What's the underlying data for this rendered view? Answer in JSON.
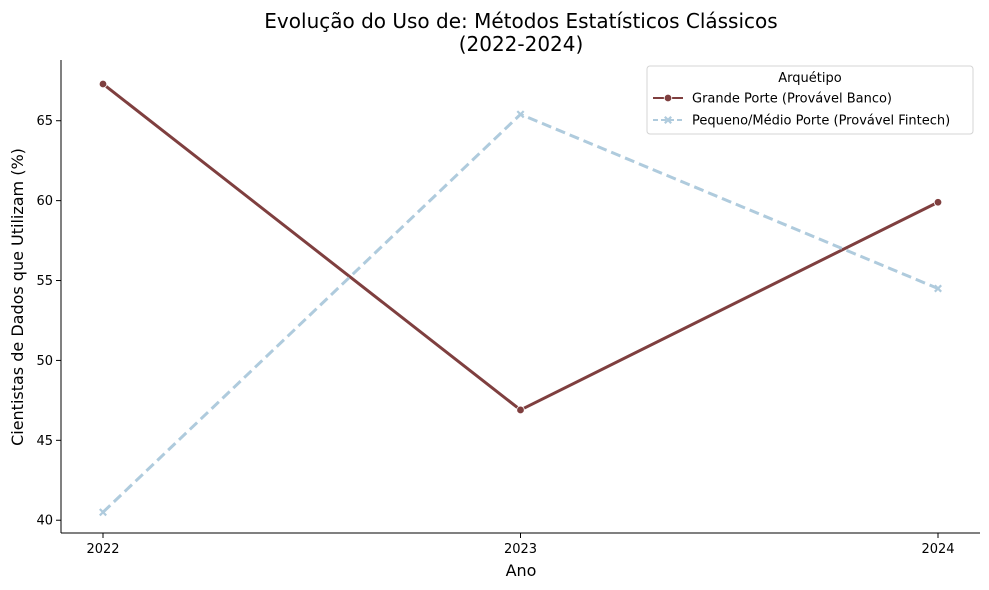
{
  "chart_data": {
    "type": "line",
    "title_line1": "Evolução do Uso de: Métodos Estatísticos Clássicos",
    "title_line2": "(2022-2024)",
    "xlabel": "Ano",
    "ylabel": "Cientistas de Dados que Utilizam (%)",
    "categories": [
      "2022",
      "2023",
      "2024"
    ],
    "y_ticks": [
      40,
      45,
      50,
      55,
      60,
      65
    ],
    "ylim": [
      39.2,
      68.8
    ],
    "grid": false,
    "legend": {
      "title": "Arquétipo",
      "placement": "top-right"
    },
    "series": [
      {
        "name": "Grande Porte (Provável Banco)",
        "values": [
          67.3,
          46.9,
          59.9
        ],
        "color": "#7f3f3f",
        "line_style": "solid",
        "marker": "circle"
      },
      {
        "name": "Pequeno/Médio Porte (Provável Fintech)",
        "values": [
          40.5,
          65.4,
          54.5
        ],
        "color": "#afcbdd",
        "line_style": "dashed",
        "marker": "x"
      }
    ]
  }
}
